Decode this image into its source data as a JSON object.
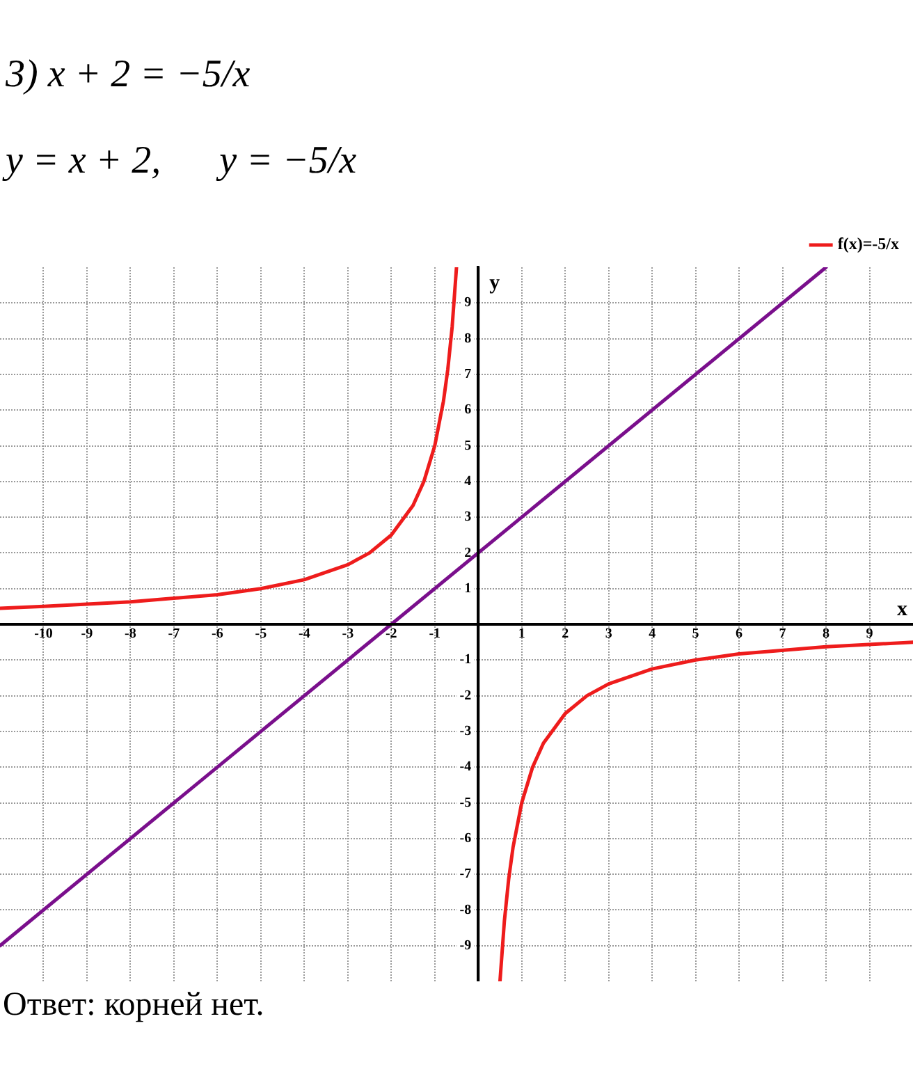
{
  "chart_data": {
    "type": "line",
    "title": "3) x + 2 = −5/x",
    "subtitle": "y = x + 2,      y = −5/x",
    "xlabel": "x",
    "ylabel": "y",
    "annotations": [
      "Ответ: корней нет."
    ],
    "xlim": [
      -11,
      10
    ],
    "ylim": [
      -10,
      10
    ],
    "xticks": [
      -10,
      -9,
      -8,
      -7,
      -6,
      -5,
      -4,
      -3,
      -2,
      -1,
      1,
      2,
      3,
      4,
      5,
      6,
      7,
      8,
      9
    ],
    "yticks": [
      -9,
      -8,
      -7,
      -6,
      -5,
      -4,
      -3,
      -2,
      -1,
      1,
      2,
      3,
      4,
      5,
      6,
      7,
      8,
      9
    ],
    "grid": true,
    "legend": "top right",
    "marker": "none",
    "line_style": "solid",
    "series": [
      {
        "name": "f(x)=-5/x",
        "color": "#ee1c1c",
        "x": [
          -11,
          -10,
          -8,
          -6,
          -5,
          -4,
          -3,
          -2.5,
          -2,
          -1.5,
          -1.25,
          -1,
          -0.8,
          -0.7,
          -0.6,
          -0.5,
          0,
          0.5,
          0.6,
          0.7,
          0.8,
          1,
          1.25,
          1.5,
          2,
          2.5,
          3,
          4,
          5,
          6,
          8,
          10
        ],
        "values": [
          0.45,
          0.5,
          0.63,
          0.83,
          1,
          1.25,
          1.67,
          2,
          2.5,
          3.33,
          4,
          5,
          6.25,
          7.14,
          8.33,
          10,
          null,
          -10,
          -8.33,
          -7.14,
          -6.25,
          -5,
          -4,
          -3.33,
          -2.5,
          -2,
          -1.67,
          -1.25,
          -1,
          -0.83,
          -0.63,
          -0.5
        ]
      },
      {
        "color": "#7a0f8c",
        "x": [
          -11,
          8
        ],
        "values": [
          -9,
          10
        ]
      }
    ]
  }
}
